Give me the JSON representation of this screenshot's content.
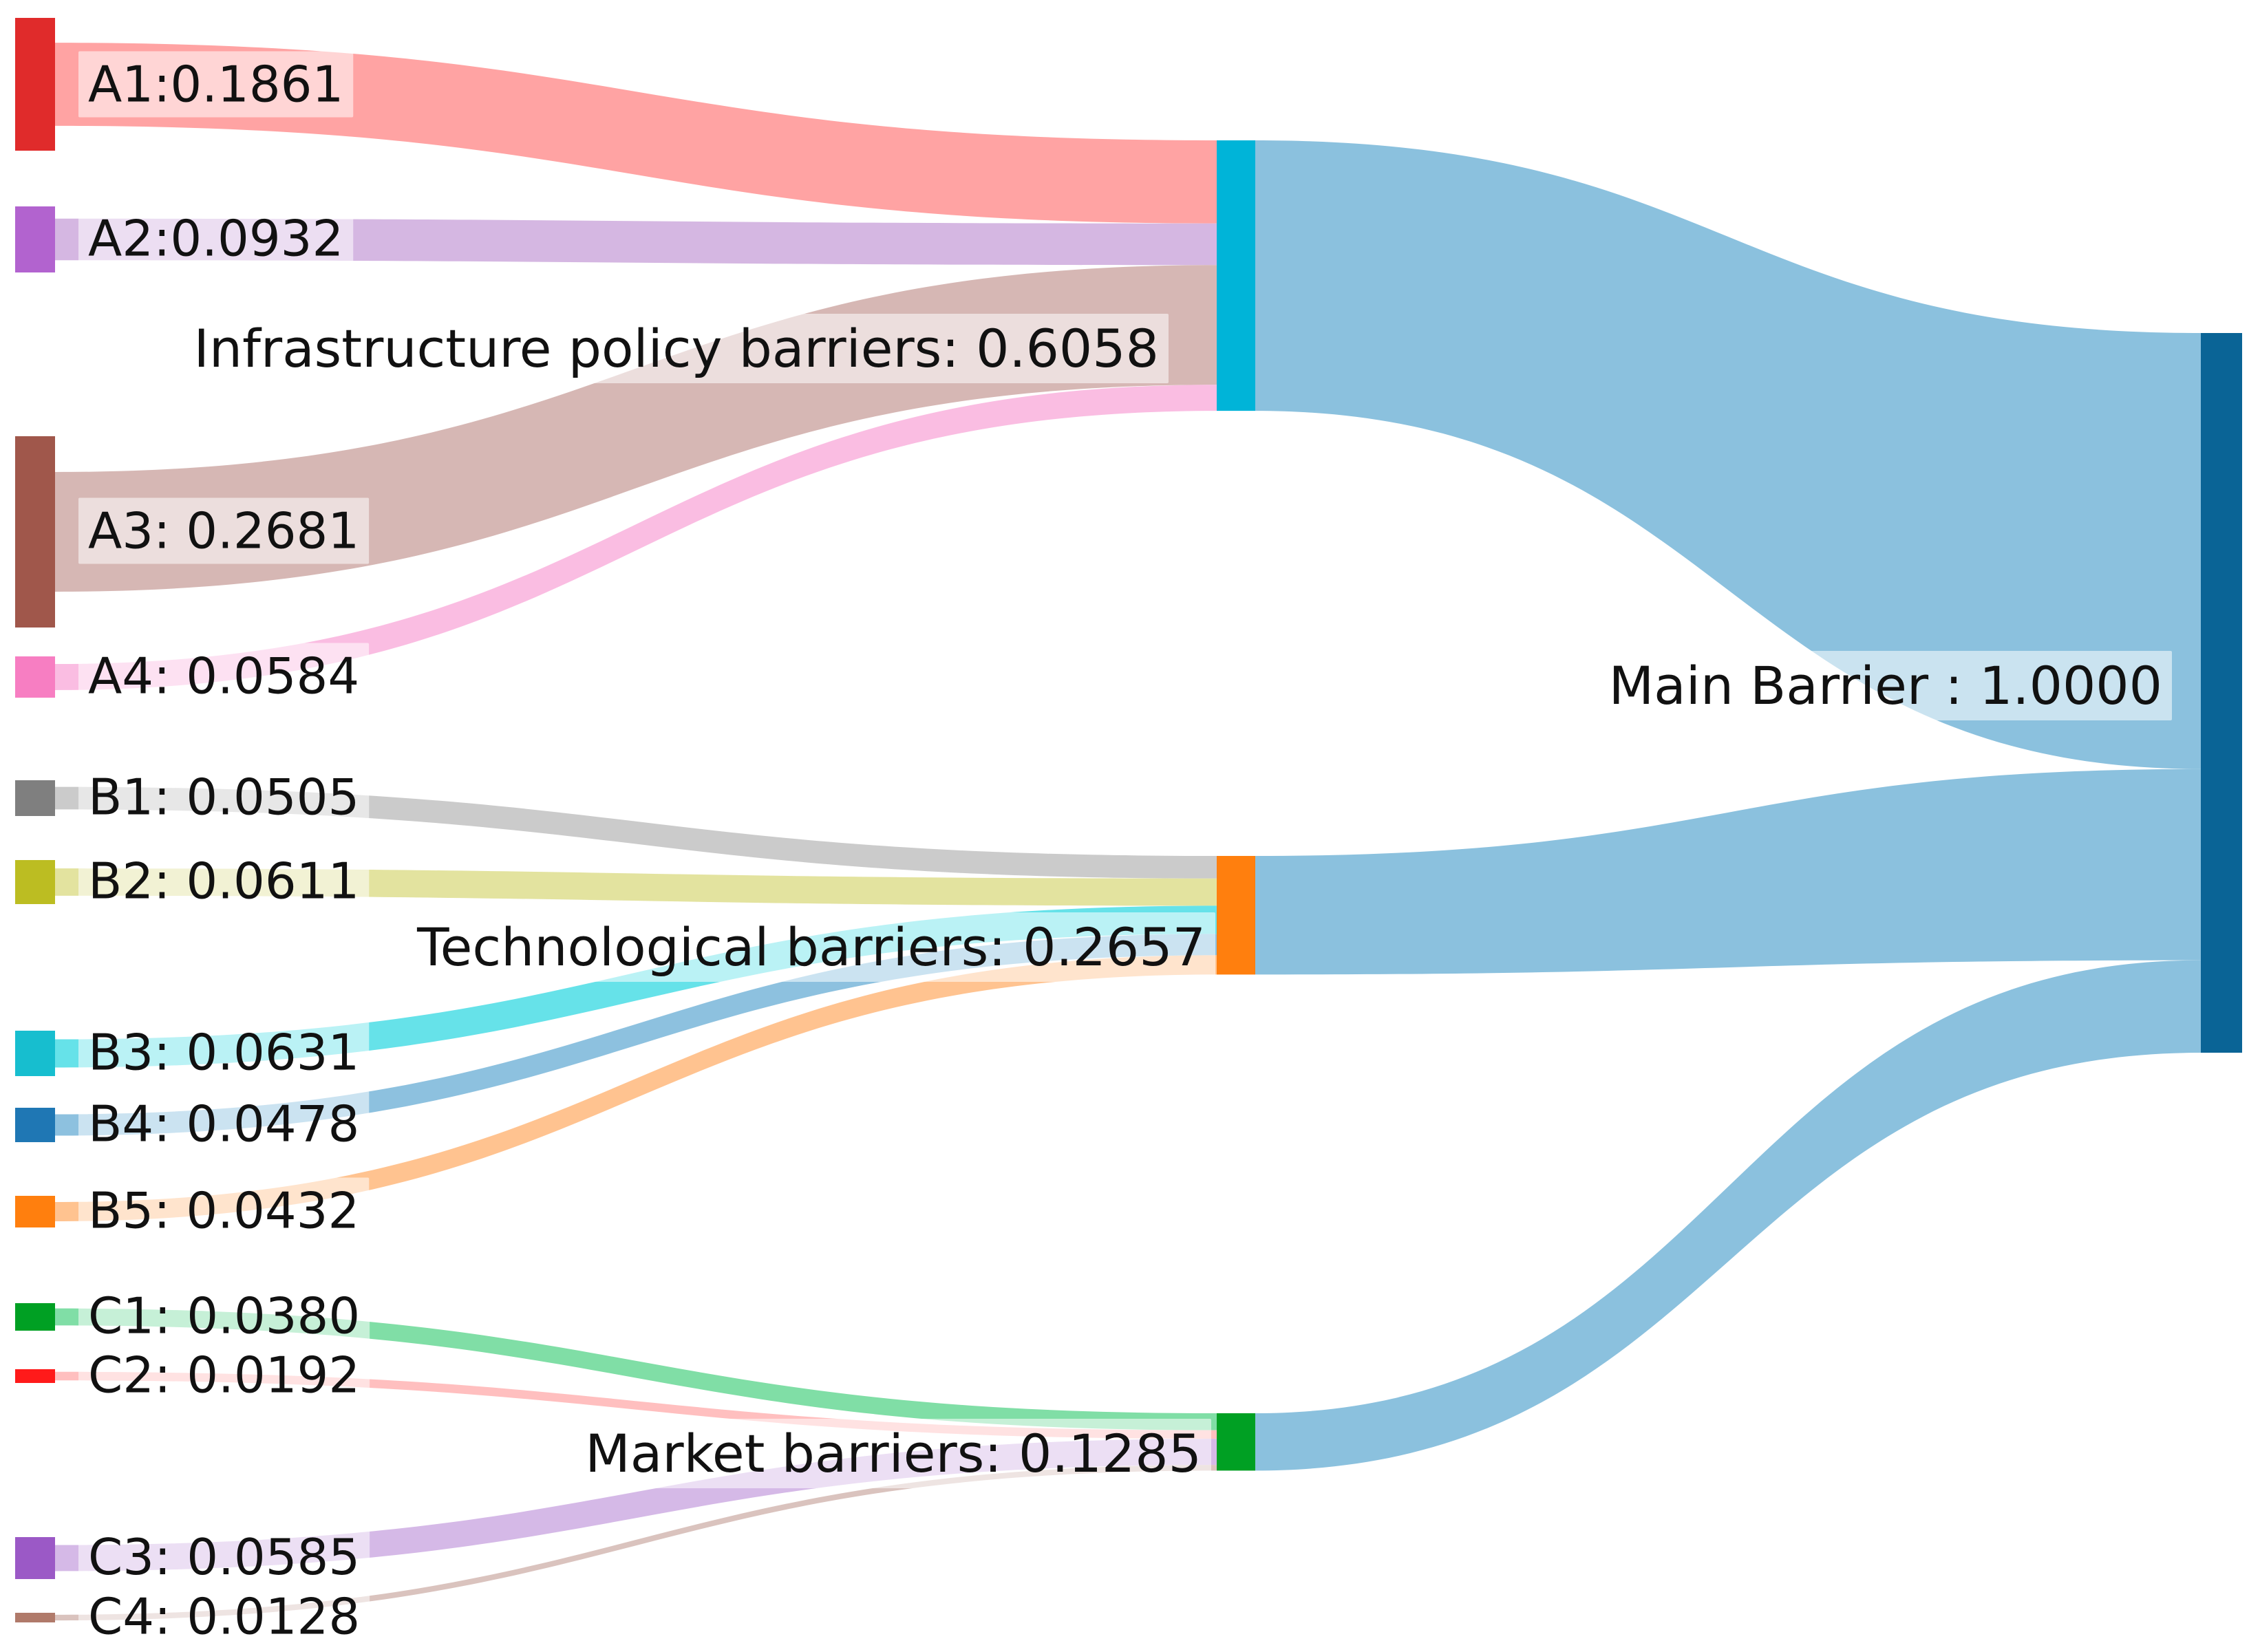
{
  "chart_data": {
    "type": "sankey",
    "title": "",
    "root": {
      "label": "Main Barrier : 1.0000",
      "value": 1.0,
      "color": "#0a6496"
    },
    "groups": [
      {
        "key": "A",
        "label": "Infrastructure policy barriers: 0.6058",
        "value": 0.6058,
        "color": "#00b4d8",
        "items": [
          {
            "label": "A1:0.1861",
            "value": 0.1861,
            "color": "#e02b2b",
            "flow": "#ff9e9e"
          },
          {
            "label": "A2:0.0932",
            "value": 0.0932,
            "color": "#b263cf",
            "flow": "#d3b3e0"
          },
          {
            "label": "A3: 0.2681",
            "value": 0.2681,
            "color": "#a0574b",
            "flow": "#d4b3b0"
          },
          {
            "label": "A4: 0.0584",
            "value": 0.0584,
            "color": "#f77ec2",
            "flow": "#fab9e0"
          }
        ]
      },
      {
        "key": "B",
        "label": "Technological barriers: 0.2657",
        "value": 0.2657,
        "color": "#ff7f0e",
        "items": [
          {
            "label": "B1: 0.0505",
            "value": 0.0505,
            "color": "#7f7f7f",
            "flow": "#c8c8c8"
          },
          {
            "label": "B2: 0.0611",
            "value": 0.0611,
            "color": "#bcbd22",
            "flow": "#e2e29a"
          },
          {
            "label": "B3: 0.0631",
            "value": 0.0631,
            "color": "#17becf",
            "flow": "#5ee0e8"
          },
          {
            "label": "B4: 0.0478",
            "value": 0.0478,
            "color": "#1f77b4",
            "flow": "#87bedd"
          },
          {
            "label": "B5: 0.0432",
            "value": 0.0432,
            "color": "#ff7f0e",
            "flow": "#ffc08a"
          }
        ]
      },
      {
        "key": "C",
        "label": "Market barriers: 0.1285",
        "value": 0.1285,
        "color": "#00a023",
        "items": [
          {
            "label": "C1: 0.0380",
            "value": 0.038,
            "color": "#00a023",
            "flow": "#79dca1"
          },
          {
            "label": "C2: 0.0192",
            "value": 0.0192,
            "color": "#ff1a1a",
            "flow": "#ffbcbc"
          },
          {
            "label": "C3: 0.0585",
            "value": 0.0585,
            "color": "#9b59c6",
            "flow": "#d3b5e6"
          },
          {
            "label": "C4: 0.0128",
            "value": 0.0128,
            "color": "#b07a6a",
            "flow": "#d8c0bb"
          }
        ]
      }
    ],
    "main_flow_color": "#8bc1de"
  }
}
